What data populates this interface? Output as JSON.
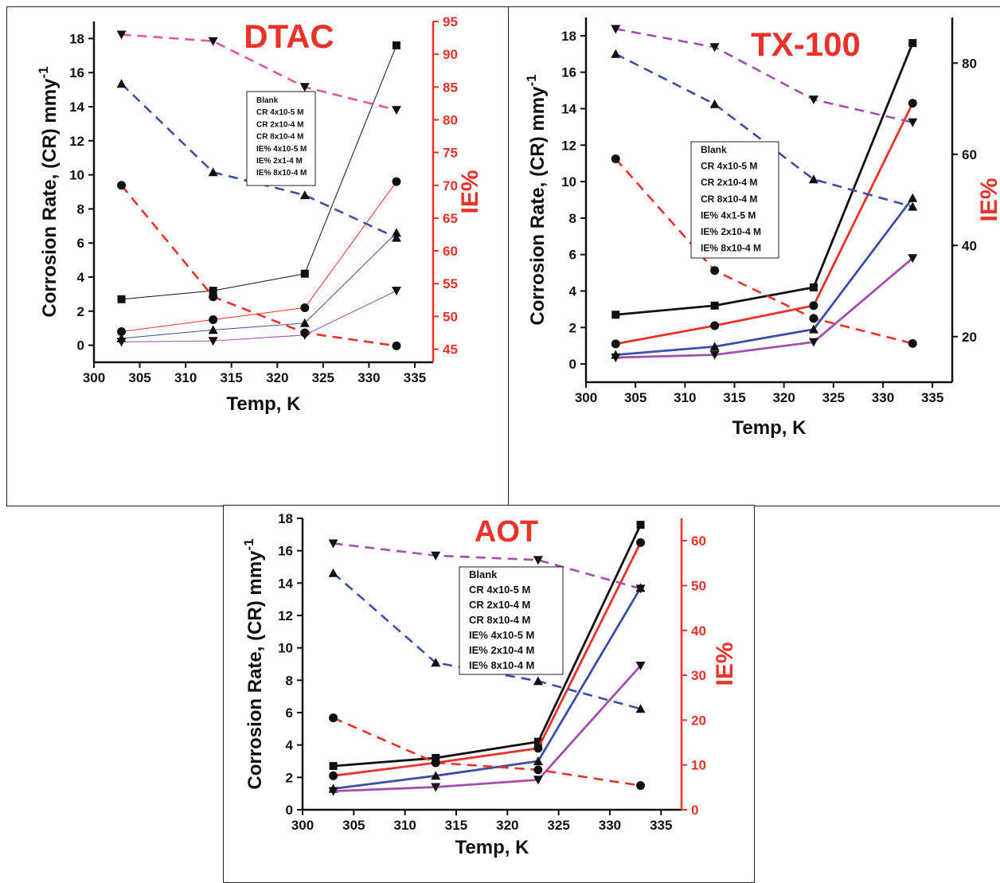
{
  "chart_data": [
    {
      "type": "line",
      "title": "DTAC",
      "xlabel": "Temp, K",
      "ylabel": "Corrosion Rate, (CR) mmy",
      "ylabel_sup": "-1",
      "y2label": "IE%",
      "xlim": [
        300,
        337
      ],
      "ylim": [
        -1,
        19
      ],
      "y2lim": [
        43,
        95
      ],
      "xticks": [
        300,
        305,
        310,
        315,
        320,
        325,
        330,
        335
      ],
      "yticks": [
        0,
        2,
        4,
        6,
        8,
        10,
        12,
        14,
        16,
        18
      ],
      "y2ticks": [
        45,
        50,
        55,
        60,
        65,
        70,
        75,
        80,
        85,
        90,
        95
      ],
      "x": [
        303,
        313,
        323,
        333
      ],
      "legend": [
        "Blank",
        "CR 4x10-5 M",
        "CR 2x10-4 M",
        "CR 8x10-4 M",
        "IE% 4x10-5 M",
        "IE% 2x1-4 M",
        "IE% 8x10-4 M"
      ],
      "series": [
        {
          "axis": "left",
          "color": "#111111",
          "dash": false,
          "marker": "square",
          "values": [
            2.7,
            3.2,
            4.2,
            17.6
          ]
        },
        {
          "axis": "left",
          "color": "#e8322a",
          "dash": false,
          "marker": "circle",
          "values": [
            0.8,
            1.5,
            2.2,
            9.6
          ]
        },
        {
          "axis": "left",
          "color": "#3b4fa8",
          "dash": false,
          "marker": "triangle-up",
          "values": [
            0.4,
            0.9,
            1.3,
            6.6
          ]
        },
        {
          "axis": "left",
          "color": "#a24fb0",
          "dash": false,
          "marker": "triangle-down",
          "values": [
            0.2,
            0.25,
            0.6,
            3.2
          ]
        },
        {
          "axis": "right",
          "color": "#e8322a",
          "dash": true,
          "marker": "circle",
          "values": [
            70,
            53,
            47.5,
            45.5
          ]
        },
        {
          "axis": "right",
          "color": "#3b4fa8",
          "dash": true,
          "marker": "triangle-up",
          "values": [
            85.5,
            72,
            68.5,
            62
          ]
        },
        {
          "axis": "right",
          "color": "#e0559f",
          "dash": true,
          "marker": "triangle-down",
          "values": [
            93,
            92,
            85,
            81.5
          ]
        }
      ]
    },
    {
      "type": "line",
      "title": "TX-100",
      "xlabel": "Temp, K",
      "ylabel": "Corrosion Rate, (CR) mmy",
      "ylabel_sup": "-1",
      "y2label": "IE%",
      "xlim": [
        300,
        337
      ],
      "ylim": [
        -1,
        19
      ],
      "y2lim": [
        10,
        90
      ],
      "xticks": [
        300,
        305,
        310,
        315,
        320,
        325,
        330,
        335
      ],
      "yticks": [
        0,
        2,
        4,
        6,
        8,
        10,
        12,
        14,
        16,
        18
      ],
      "y2ticks": [
        20,
        40,
        60,
        80
      ],
      "x": [
        303,
        313,
        323,
        333
      ],
      "legend": [
        "Blank",
        "CR 4x10-5 M",
        "CR 2x10-4 M",
        "CR 8x10-4 M",
        "IE% 4x1-5 M",
        "IE% 2x10-4 M",
        "IE% 8x10-4 M"
      ],
      "series": [
        {
          "axis": "left",
          "color": "#111111",
          "dash": false,
          "marker": "square",
          "values": [
            2.7,
            3.2,
            4.2,
            17.6
          ]
        },
        {
          "axis": "left",
          "color": "#e8322a",
          "dash": false,
          "marker": "circle",
          "values": [
            1.1,
            2.1,
            3.2,
            14.3
          ]
        },
        {
          "axis": "left",
          "color": "#3b4fa8",
          "dash": false,
          "marker": "triangle-up",
          "values": [
            0.5,
            0.95,
            1.9,
            9.1
          ]
        },
        {
          "axis": "left",
          "color": "#a24fb0",
          "dash": false,
          "marker": "triangle-down",
          "values": [
            0.35,
            0.5,
            1.2,
            5.8
          ]
        },
        {
          "axis": "right",
          "color": "#e8322a",
          "dash": true,
          "marker": "circle",
          "values": [
            59,
            34.5,
            24,
            18.5
          ]
        },
        {
          "axis": "right",
          "color": "#3b4fa8",
          "dash": true,
          "marker": "triangle-up",
          "values": [
            82,
            71,
            54.5,
            48.5
          ]
        },
        {
          "axis": "right",
          "color": "#a24fb0",
          "dash": true,
          "marker": "triangle-down",
          "values": [
            87.5,
            83.5,
            72,
            67
          ]
        }
      ]
    },
    {
      "type": "line",
      "title": "AOT",
      "xlabel": "Temp, K",
      "ylabel": "Corrosion Rate, (CR) mmy",
      "ylabel_sup": "-1",
      "y2label": "IE%",
      "xlim": [
        300,
        337
      ],
      "ylim": [
        0,
        18
      ],
      "y2lim": [
        0,
        65
      ],
      "xticks": [
        300,
        305,
        310,
        315,
        320,
        325,
        330,
        335
      ],
      "yticks": [
        0,
        2,
        4,
        6,
        8,
        10,
        12,
        14,
        16,
        18
      ],
      "y2ticks": [
        0,
        10,
        20,
        30,
        40,
        50,
        60
      ],
      "x": [
        303,
        313,
        323,
        333
      ],
      "legend": [
        "Blank",
        "CR 4x10-5 M",
        "CR 2x10-4 M",
        "CR 8x10-4 M",
        "IE% 4x10-5 M",
        "IE% 2x10-4 M",
        "IE% 8x10-4 M"
      ],
      "series": [
        {
          "axis": "left",
          "color": "#111111",
          "dash": false,
          "marker": "square",
          "values": [
            2.7,
            3.2,
            4.2,
            17.6
          ]
        },
        {
          "axis": "left",
          "color": "#e8322a",
          "dash": false,
          "marker": "circle",
          "values": [
            2.1,
            2.9,
            3.8,
            16.5
          ]
        },
        {
          "axis": "left",
          "color": "#3b4fa8",
          "dash": false,
          "marker": "triangle-up",
          "values": [
            1.3,
            2.1,
            3.0,
            13.7
          ]
        },
        {
          "axis": "left",
          "color": "#a24fb0",
          "dash": false,
          "marker": "triangle-down",
          "values": [
            1.15,
            1.4,
            1.85,
            8.9
          ]
        },
        {
          "axis": "right",
          "color": "#e8322a",
          "dash": true,
          "marker": "circle",
          "values": [
            20.5,
            10.5,
            8.9,
            5.4
          ]
        },
        {
          "axis": "right",
          "color": "#3b4fa8",
          "dash": true,
          "marker": "triangle-up",
          "values": [
            52.8,
            32.8,
            28.7,
            22.5
          ]
        },
        {
          "axis": "right",
          "color": "#a24fb0",
          "dash": true,
          "marker": "triangle-down",
          "values": [
            59.4,
            56.7,
            55.7,
            49.3
          ]
        }
      ]
    }
  ]
}
